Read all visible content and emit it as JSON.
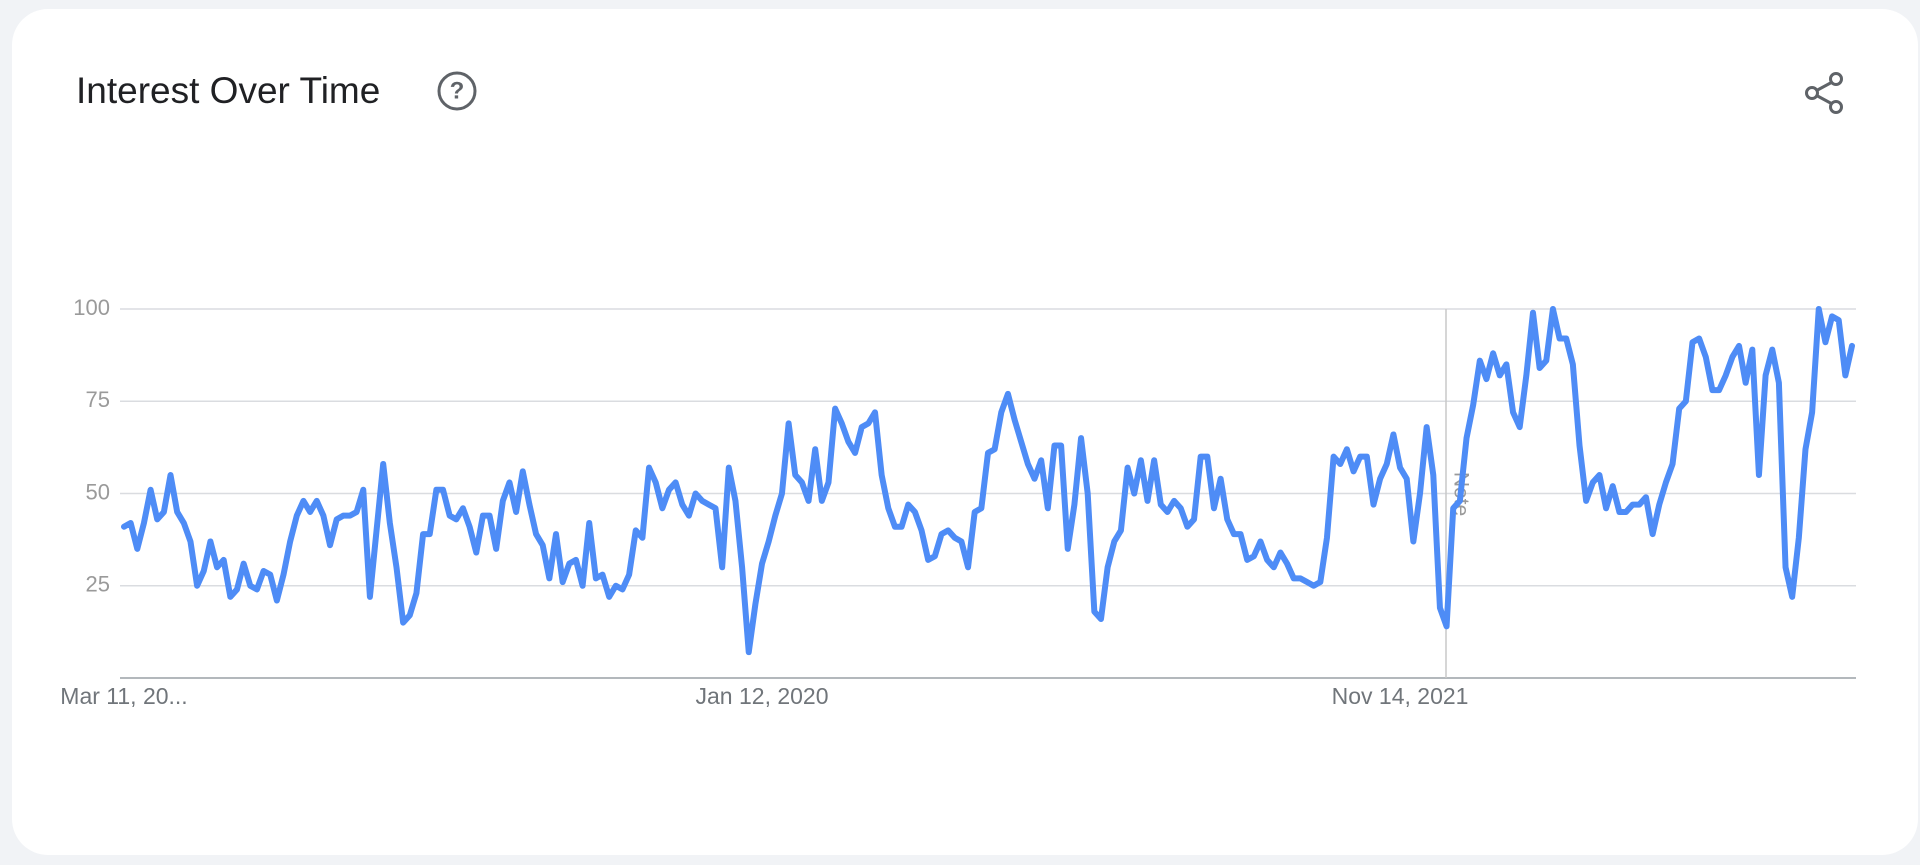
{
  "chart_data": {
    "type": "line",
    "title": "Interest Over Time",
    "annotation": "Note",
    "color": "#4e8cf6",
    "ylim": [
      0,
      100
    ],
    "yticks": [
      25,
      50,
      75,
      100
    ],
    "grid": true,
    "categories": [
      "Mar 11, 20...",
      null,
      null,
      null,
      null,
      null,
      null,
      null,
      null,
      null,
      null,
      null,
      null,
      null,
      null,
      null,
      null,
      null,
      null,
      null,
      null,
      null,
      null,
      null,
      null,
      null,
      null,
      null,
      null,
      null,
      null,
      null,
      null,
      null,
      null,
      null,
      null,
      null,
      null,
      null,
      null,
      null,
      null,
      null,
      null,
      null,
      null,
      null,
      null,
      null,
      null,
      null,
      null,
      null,
      null,
      null,
      null,
      null,
      null,
      null,
      null,
      null,
      null,
      null,
      null,
      null,
      null,
      null,
      null,
      null,
      null,
      null,
      null,
      null,
      null,
      null,
      null,
      null,
      null,
      null,
      null,
      null,
      null,
      null,
      null,
      null,
      null,
      null,
      null,
      null,
      null,
      null,
      null,
      null,
      null,
      null,
      "Jan 12, 2020",
      null,
      null,
      null,
      null,
      null,
      null,
      null,
      null,
      null,
      null,
      null,
      null,
      null,
      null,
      null,
      null,
      null,
      null,
      null,
      null,
      null,
      null,
      null,
      null,
      null,
      null,
      null,
      null,
      null,
      null,
      null,
      null,
      null,
      null,
      null,
      null,
      null,
      null,
      null,
      null,
      null,
      null,
      null,
      null,
      null,
      null,
      null,
      null,
      null,
      null,
      null,
      null,
      null,
      null,
      null,
      null,
      null,
      null,
      null,
      null,
      null,
      null,
      null,
      null,
      null,
      null,
      null,
      null,
      null,
      null,
      null,
      null,
      null,
      null,
      null,
      null,
      null,
      null,
      null,
      null,
      null,
      null,
      null,
      null,
      null,
      null,
      null,
      null,
      null,
      null,
      null,
      null,
      null,
      null,
      null,
      "Nov 14, 2021",
      null,
      null,
      null,
      null,
      null,
      null,
      null,
      null,
      null,
      null,
      null,
      null,
      null,
      null,
      null,
      null,
      null,
      null,
      null,
      null,
      null,
      null,
      null,
      null,
      null,
      null,
      null,
      null,
      null,
      null,
      null,
      null,
      null,
      null,
      null,
      null,
      null,
      null,
      null,
      null,
      null,
      null,
      null,
      null,
      null,
      null,
      null,
      null,
      null,
      null,
      null,
      null,
      null,
      null,
      null,
      null,
      null,
      null,
      null,
      null,
      null,
      null,
      null,
      null,
      null,
      null,
      null,
      null
    ],
    "values": [
      41,
      42,
      35,
      42,
      51,
      43,
      45,
      55,
      45,
      42,
      37,
      25,
      29,
      37,
      30,
      32,
      22,
      24,
      31,
      25,
      24,
      29,
      28,
      21,
      28,
      37,
      44,
      48,
      45,
      48,
      44,
      36,
      43,
      44,
      44,
      45,
      51,
      22,
      40,
      58,
      42,
      30,
      15,
      17,
      23,
      39,
      39,
      51,
      51,
      44,
      43,
      46,
      41,
      34,
      44,
      44,
      35,
      48,
      53,
      45,
      56,
      47,
      39,
      36,
      27,
      39,
      26,
      31,
      32,
      25,
      42,
      27,
      28,
      22,
      25,
      24,
      28,
      40,
      38,
      57,
      53,
      46,
      51,
      53,
      47,
      44,
      50,
      48,
      47,
      46,
      30,
      57,
      48,
      30,
      7,
      20,
      31,
      37,
      44,
      50,
      69,
      55,
      53,
      48,
      62,
      48,
      53,
      73,
      69,
      64,
      61,
      68,
      69,
      72,
      55,
      46,
      41,
      41,
      47,
      45,
      40,
      32,
      33,
      39,
      40,
      38,
      37,
      30,
      45,
      46,
      61,
      62,
      72,
      77,
      70,
      64,
      58,
      54,
      59,
      46,
      63,
      63,
      35,
      47,
      65,
      50,
      18,
      16,
      30,
      37,
      40,
      57,
      50,
      59,
      48,
      59,
      47,
      45,
      48,
      46,
      41,
      43,
      60,
      60,
      46,
      54,
      43,
      39,
      39,
      32,
      33,
      37,
      32,
      30,
      34,
      31,
      27,
      27,
      26,
      25,
      26,
      38,
      60,
      58,
      62,
      56,
      60,
      60,
      47,
      54,
      58,
      66,
      57,
      54,
      37,
      50,
      68,
      55,
      19,
      14,
      46,
      48,
      65,
      74,
      86,
      81,
      88,
      82,
      85,
      72,
      68,
      82,
      99,
      84,
      86,
      100,
      92,
      92,
      85,
      63,
      48,
      53,
      55,
      46,
      52,
      45,
      45,
      47,
      47,
      49,
      39,
      47,
      53,
      58,
      73,
      75,
      91,
      92,
      87,
      78,
      78,
      82,
      87,
      90,
      80,
      89,
      55,
      82,
      89,
      80,
      30,
      22,
      38,
      62,
      72,
      100,
      91,
      98,
      97,
      82,
      90
    ]
  }
}
